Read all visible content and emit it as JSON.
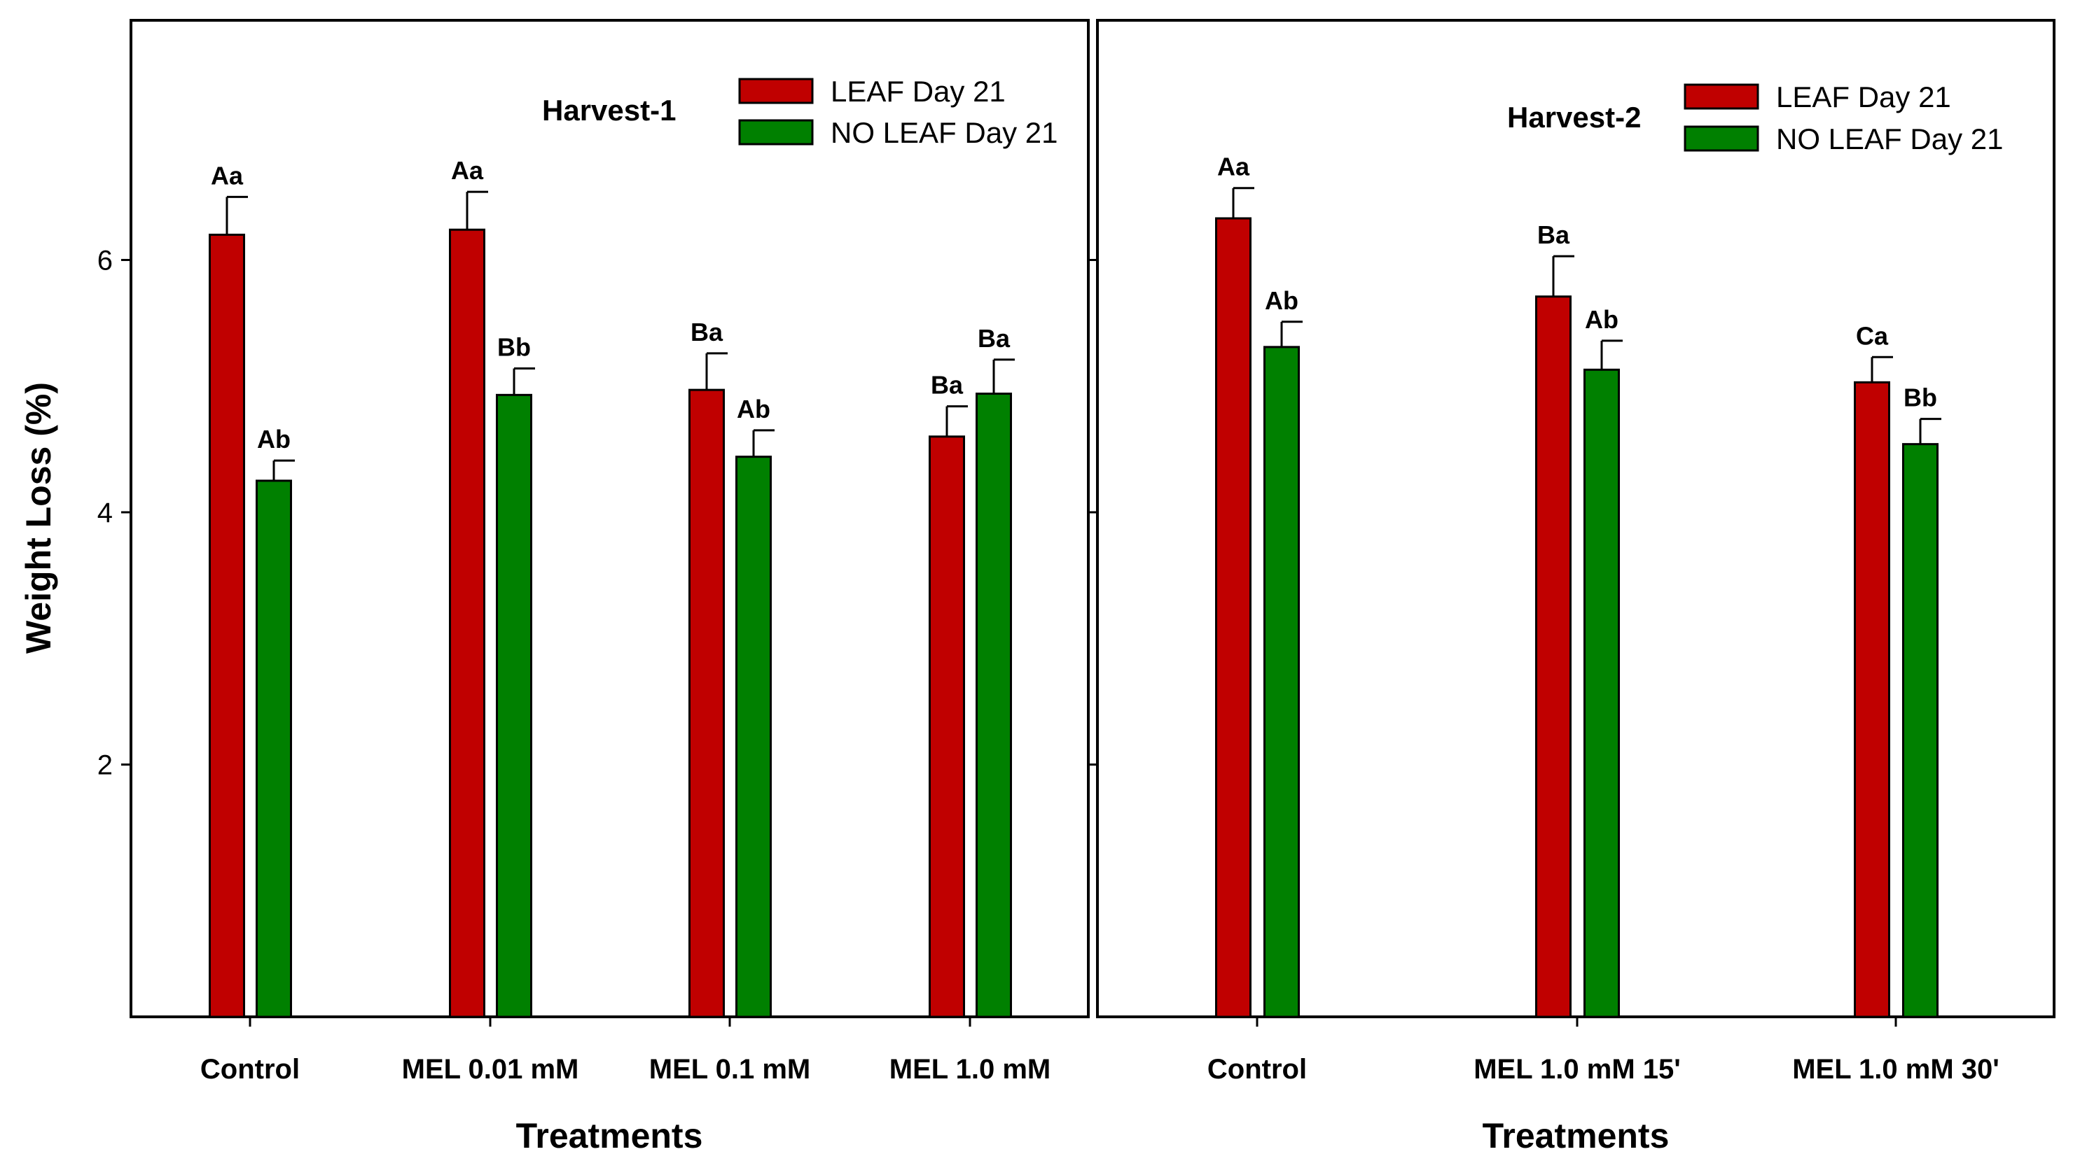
{
  "colors": {
    "leaf": "#c00000",
    "noleaf": "#008000",
    "axis": "#000000"
  },
  "chart_data": [
    {
      "type": "bar",
      "title": "Harvest-1",
      "xlabel": "Treatments",
      "ylabel": "Weight Loss (%)",
      "ylim": [
        0,
        7.9
      ],
      "yticks": [
        2,
        4,
        6
      ],
      "legend_position": "top-right",
      "categories": [
        "Control",
        "MEL 0.01 mM",
        "MEL 0.1 mM",
        "MEL 1.0 mM"
      ],
      "series": [
        {
          "name": "LEAF Day 21",
          "values": [
            6.2,
            6.24,
            4.97,
            4.6
          ],
          "errors": [
            0.3,
            0.3,
            0.29,
            0.24
          ],
          "labels": [
            "Aa",
            "Aa",
            "Ba",
            "Ba"
          ]
        },
        {
          "name": "NO LEAF Day 21",
          "values": [
            4.25,
            4.93,
            4.44,
            4.94
          ],
          "errors": [
            0.16,
            0.21,
            0.21,
            0.27
          ],
          "labels": [
            "Ab",
            "Bb",
            "Ab",
            "Ba"
          ]
        }
      ]
    },
    {
      "type": "bar",
      "title": "Harvest-2",
      "xlabel": "Treatments",
      "ylabel": "",
      "ylim": [
        0,
        7.9
      ],
      "yticks": [
        2,
        4,
        6
      ],
      "legend_position": "top-right",
      "categories": [
        "Control",
        "MEL 1.0  mM 15'",
        "MEL 1.0 mM 30'"
      ],
      "series": [
        {
          "name": "LEAF Day 21",
          "values": [
            6.33,
            5.71,
            5.03
          ],
          "errors": [
            0.24,
            0.32,
            0.2
          ],
          "labels": [
            "Aa",
            "Ba",
            "Ca"
          ]
        },
        {
          "name": "NO LEAF Day 21",
          "values": [
            5.31,
            5.13,
            4.54
          ],
          "errors": [
            0.2,
            0.23,
            0.2
          ],
          "labels": [
            "Ab",
            "Ab",
            "Bb"
          ]
        }
      ]
    }
  ]
}
